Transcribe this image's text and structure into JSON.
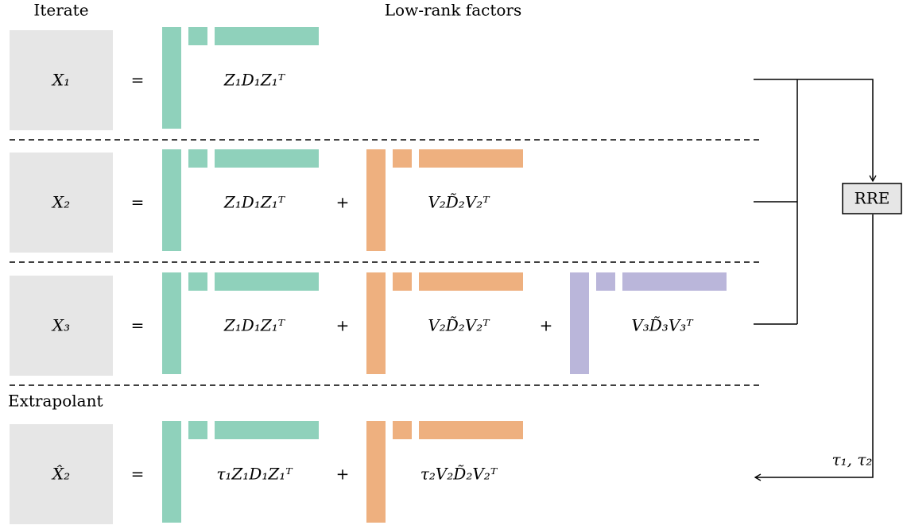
{
  "headers": {
    "iterate": "Iterate",
    "factors": "Low-rank factors",
    "extrapolant": "Extrapolant"
  },
  "rows": [
    {
      "label": "X₁",
      "eq": "=",
      "terms": [
        {
          "label": "Z₁D₁Z₁ᵀ",
          "color": "#8fd1bb"
        }
      ]
    },
    {
      "label": "X₂",
      "eq": "=",
      "terms": [
        {
          "label": "Z₁D₁Z₁ᵀ",
          "color": "#8fd1bb"
        },
        {
          "op": "+",
          "label": "V₂D̃₂V₂ᵀ",
          "color": "#eeb07f"
        }
      ]
    },
    {
      "label": "X₃",
      "eq": "=",
      "terms": [
        {
          "label": "Z₁D₁Z₁ᵀ",
          "color": "#8fd1bb"
        },
        {
          "op": "+",
          "label": "V₂D̃₂V₂ᵀ",
          "color": "#eeb07f"
        },
        {
          "op": "+",
          "label": "V₃D̃₃V₃ᵀ",
          "color": "#bab6da"
        }
      ]
    },
    {
      "label": "X̂₂",
      "eq": "=",
      "terms": [
        {
          "label": "τ₁Z₁D₁Z₁ᵀ",
          "color": "#8fd1bb"
        },
        {
          "op": "+",
          "label": "τ₂V₂D̃₂V₂ᵀ",
          "color": "#eeb07f"
        }
      ]
    }
  ],
  "rre": {
    "label": "RRE",
    "output": "τ₁, τ₂"
  }
}
